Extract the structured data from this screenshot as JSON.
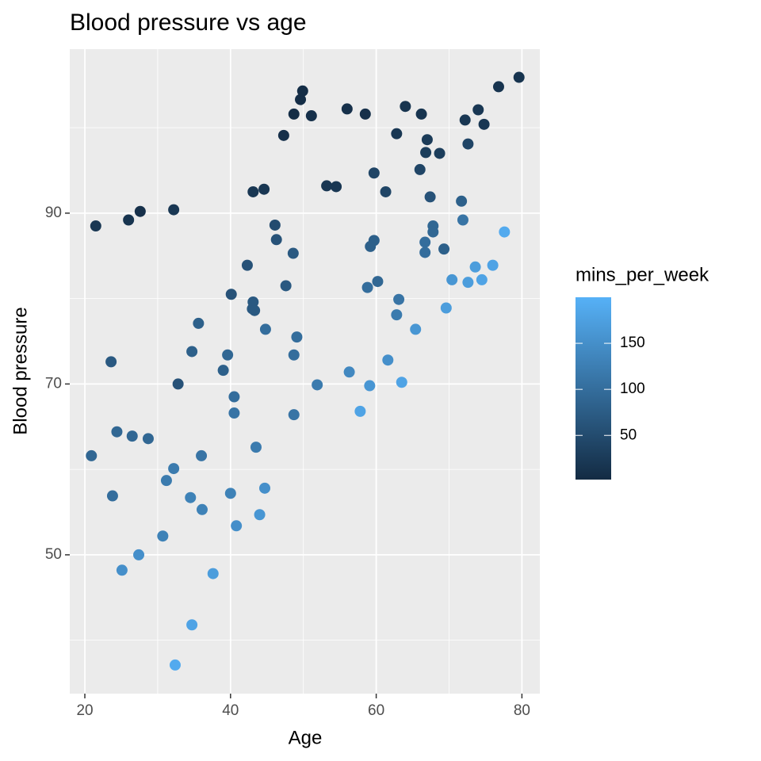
{
  "chart_data": {
    "type": "scatter",
    "title": "Blood pressure vs age",
    "x_label": "Age",
    "y_label": "Blood pressure",
    "xlim": [
      17.93,
      82.46
    ],
    "ylim": [
      33.75,
      109.2
    ],
    "xticks": [
      20,
      40,
      60,
      80
    ],
    "yticks": [
      50,
      70,
      90
    ],
    "grid": true,
    "minor_grid": true,
    "color_scale": {
      "title": "mins_per_week",
      "low_color": "#132B43",
      "high_color": "#56B1F7",
      "lim": [
        2,
        200
      ],
      "ticks": [
        50,
        100,
        150
      ]
    },
    "series": [
      {
        "x": [
          21.5,
          26.0,
          27.6,
          32.2,
          47.3,
          48.7,
          49.6,
          49.9,
          51.1,
          56.0,
          58.5,
          64.0,
          66.2,
          62.8,
          67.0,
          66.8,
          68.7,
          66.0,
          59.7,
          61.3,
          67.4,
          53.2,
          54.5,
          43.1,
          44.6,
          72.2,
          74.0,
          74.8,
          76.8,
          79.6,
          72.6,
          71.7,
          71.9,
          77.6,
          76.0,
          73.6,
          74.5,
          72.6,
          70.4,
          69.6,
          67.8,
          67.8,
          66.7,
          66.7,
          69.3,
          59.7,
          59.2,
          60.2,
          58.8,
          63.1,
          62.8,
          65.4,
          61.6,
          56.3,
          59.1,
          63.5,
          57.8,
          51.9,
          46.1,
          46.3,
          48.6,
          42.3,
          47.6,
          40.1,
          43.1,
          43.0,
          43.3,
          35.6,
          44.8,
          49.1,
          34.7,
          39.6,
          48.7,
          39.0,
          32.8,
          40.5,
          40.5,
          48.7,
          23.6,
          20.9,
          24.4,
          26.5,
          28.7,
          23.8,
          36.0,
          32.2,
          31.2,
          43.5,
          44.7,
          40.0,
          34.5,
          36.1,
          44.0,
          40.8,
          30.7,
          27.4,
          25.1,
          37.6,
          34.7,
          32.4
        ],
        "values": [
          88.5,
          89.2,
          90.2,
          90.4,
          99.1,
          101.6,
          103.3,
          104.3,
          101.4,
          102.2,
          101.6,
          102.5,
          101.6,
          99.3,
          98.6,
          97.1,
          97.0,
          95.1,
          94.7,
          92.5,
          91.9,
          93.2,
          93.1,
          92.5,
          92.8,
          100.9,
          102.1,
          100.4,
          104.8,
          105.9,
          98.1,
          91.4,
          89.2,
          87.8,
          83.9,
          83.7,
          82.2,
          81.9,
          82.2,
          78.9,
          88.5,
          87.8,
          86.6,
          85.4,
          85.8,
          86.8,
          86.1,
          82.0,
          81.3,
          79.9,
          78.1,
          76.4,
          72.8,
          71.4,
          69.8,
          70.2,
          66.8,
          69.9,
          88.6,
          86.9,
          85.3,
          83.9,
          81.5,
          80.5,
          79.6,
          78.8,
          78.6,
          77.1,
          76.4,
          75.5,
          73.8,
          73.4,
          73.4,
          71.6,
          70.0,
          68.5,
          66.6,
          66.4,
          72.6,
          61.6,
          64.4,
          63.9,
          63.6,
          56.9,
          61.6,
          60.1,
          58.7,
          62.6,
          57.8,
          57.2,
          56.7,
          55.3,
          54.7,
          53.4,
          52.2,
          50.0,
          48.2,
          47.8,
          41.8,
          37.1
        ],
        "color_values": [
          20,
          15,
          10,
          20,
          10,
          5,
          5,
          5,
          10,
          10,
          10,
          15,
          15,
          20,
          25,
          30,
          30,
          40,
          40,
          40,
          60,
          20,
          20,
          20,
          20,
          20,
          20,
          20,
          15,
          15,
          40,
          80,
          110,
          190,
          180,
          170,
          180,
          170,
          160,
          170,
          90,
          90,
          100,
          100,
          80,
          80,
          80,
          90,
          100,
          110,
          120,
          160,
          150,
          140,
          160,
          180,
          180,
          120,
          50,
          60,
          70,
          60,
          70,
          60,
          70,
          70,
          70,
          80,
          100,
          100,
          80,
          90,
          100,
          80,
          60,
          100,
          110,
          110,
          70,
          90,
          90,
          90,
          90,
          100,
          110,
          120,
          120,
          120,
          150,
          130,
          130,
          130,
          160,
          150,
          130,
          150,
          150,
          170,
          180,
          190
        ]
      }
    ]
  }
}
